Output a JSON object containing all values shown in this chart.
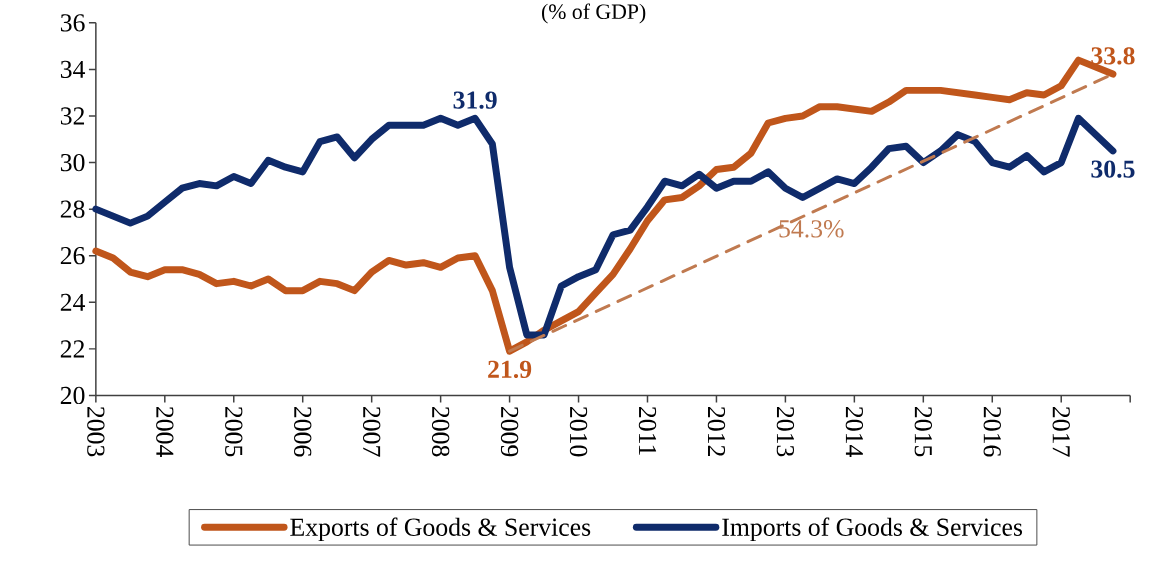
{
  "chart_data": {
    "type": "line",
    "title": "(% of GDP)",
    "x": [
      2003,
      2003.25,
      2003.5,
      2003.75,
      2004,
      2004.25,
      2004.5,
      2004.75,
      2005,
      2005.25,
      2005.5,
      2005.75,
      2006,
      2006.25,
      2006.5,
      2006.75,
      2007,
      2007.25,
      2007.5,
      2007.75,
      2008,
      2008.25,
      2008.5,
      2008.75,
      2009,
      2009.25,
      2009.5,
      2009.75,
      2010,
      2010.25,
      2010.5,
      2010.75,
      2011,
      2011.25,
      2011.5,
      2011.75,
      2012,
      2012.25,
      2012.5,
      2012.75,
      2013,
      2013.25,
      2013.5,
      2013.75,
      2014,
      2014.25,
      2014.5,
      2014.75,
      2015,
      2015.25,
      2015.5,
      2015.75,
      2016,
      2016.25,
      2016.5,
      2016.75,
      2017,
      2017.25,
      2017.5,
      2017.75
    ],
    "xlim": [
      2003,
      2018
    ],
    "xticks": [
      2003,
      2004,
      2005,
      2006,
      2007,
      2008,
      2009,
      2010,
      2011,
      2012,
      2013,
      2014,
      2015,
      2016,
      2017,
      {
        "value": 2018,
        "label": null
      }
    ],
    "ylim": [
      20,
      36
    ],
    "yticks": [
      20,
      22,
      24,
      26,
      28,
      30,
      32,
      34,
      36
    ],
    "series": [
      {
        "name": "Exports of Goods & Services",
        "color": "#c0561b",
        "values": [
          26.2,
          25.9,
          25.3,
          25.1,
          25.4,
          25.4,
          25.2,
          24.8,
          24.9,
          24.7,
          25.0,
          24.5,
          24.5,
          24.9,
          24.8,
          24.5,
          25.3,
          25.8,
          25.6,
          25.7,
          25.5,
          25.9,
          26.0,
          24.5,
          21.9,
          22.3,
          22.8,
          23.2,
          23.6,
          24.4,
          25.2,
          26.3,
          27.5,
          28.4,
          28.5,
          29.0,
          29.7,
          29.8,
          30.4,
          31.7,
          31.9,
          32.0,
          32.4,
          32.4,
          32.3,
          32.2,
          32.6,
          33.1,
          33.1,
          33.1,
          33.0,
          32.9,
          32.8,
          32.7,
          33.0,
          32.9,
          33.3,
          34.4,
          34.1,
          33.8
        ]
      },
      {
        "name": "Imports of Goods & Services",
        "color": "#0f2b6b",
        "values": [
          28.0,
          27.7,
          27.4,
          27.7,
          28.3,
          28.9,
          29.1,
          29.0,
          29.4,
          29.1,
          30.1,
          29.8,
          29.6,
          30.9,
          31.1,
          30.2,
          31.0,
          31.6,
          31.6,
          31.6,
          31.9,
          31.6,
          31.9,
          30.8,
          25.5,
          22.6,
          22.6,
          24.7,
          25.1,
          25.4,
          26.9,
          27.1,
          28.1,
          29.2,
          29.0,
          29.5,
          28.9,
          29.2,
          29.2,
          29.6,
          28.9,
          28.5,
          28.9,
          29.3,
          29.1,
          29.8,
          30.6,
          30.7,
          30.0,
          30.5,
          31.2,
          30.9,
          30.0,
          29.8,
          30.3,
          29.6,
          30.0,
          31.9,
          31.2,
          30.5
        ]
      },
      {
        "type": "line",
        "x": [
          2009,
          2017.75
        ],
        "values": [
          21.9,
          33.8
        ],
        "color": "#c07a50",
        "line_style": "dashed"
      }
    ],
    "annotations": [
      {
        "text": "31.9",
        "x": 2008.5,
        "y": 31.9
      },
      {
        "text": "21.9",
        "x": 2009,
        "y": 21.9
      },
      {
        "text": "33.8",
        "x": 2017.75,
        "y": 33.8
      },
      {
        "text": "30.5",
        "x": 2017.75,
        "y": 30.5
      },
      "54.3%"
    ],
    "legend": "bottom",
    "grid": false,
    "marker": "none",
    "line_style": "solid"
  }
}
